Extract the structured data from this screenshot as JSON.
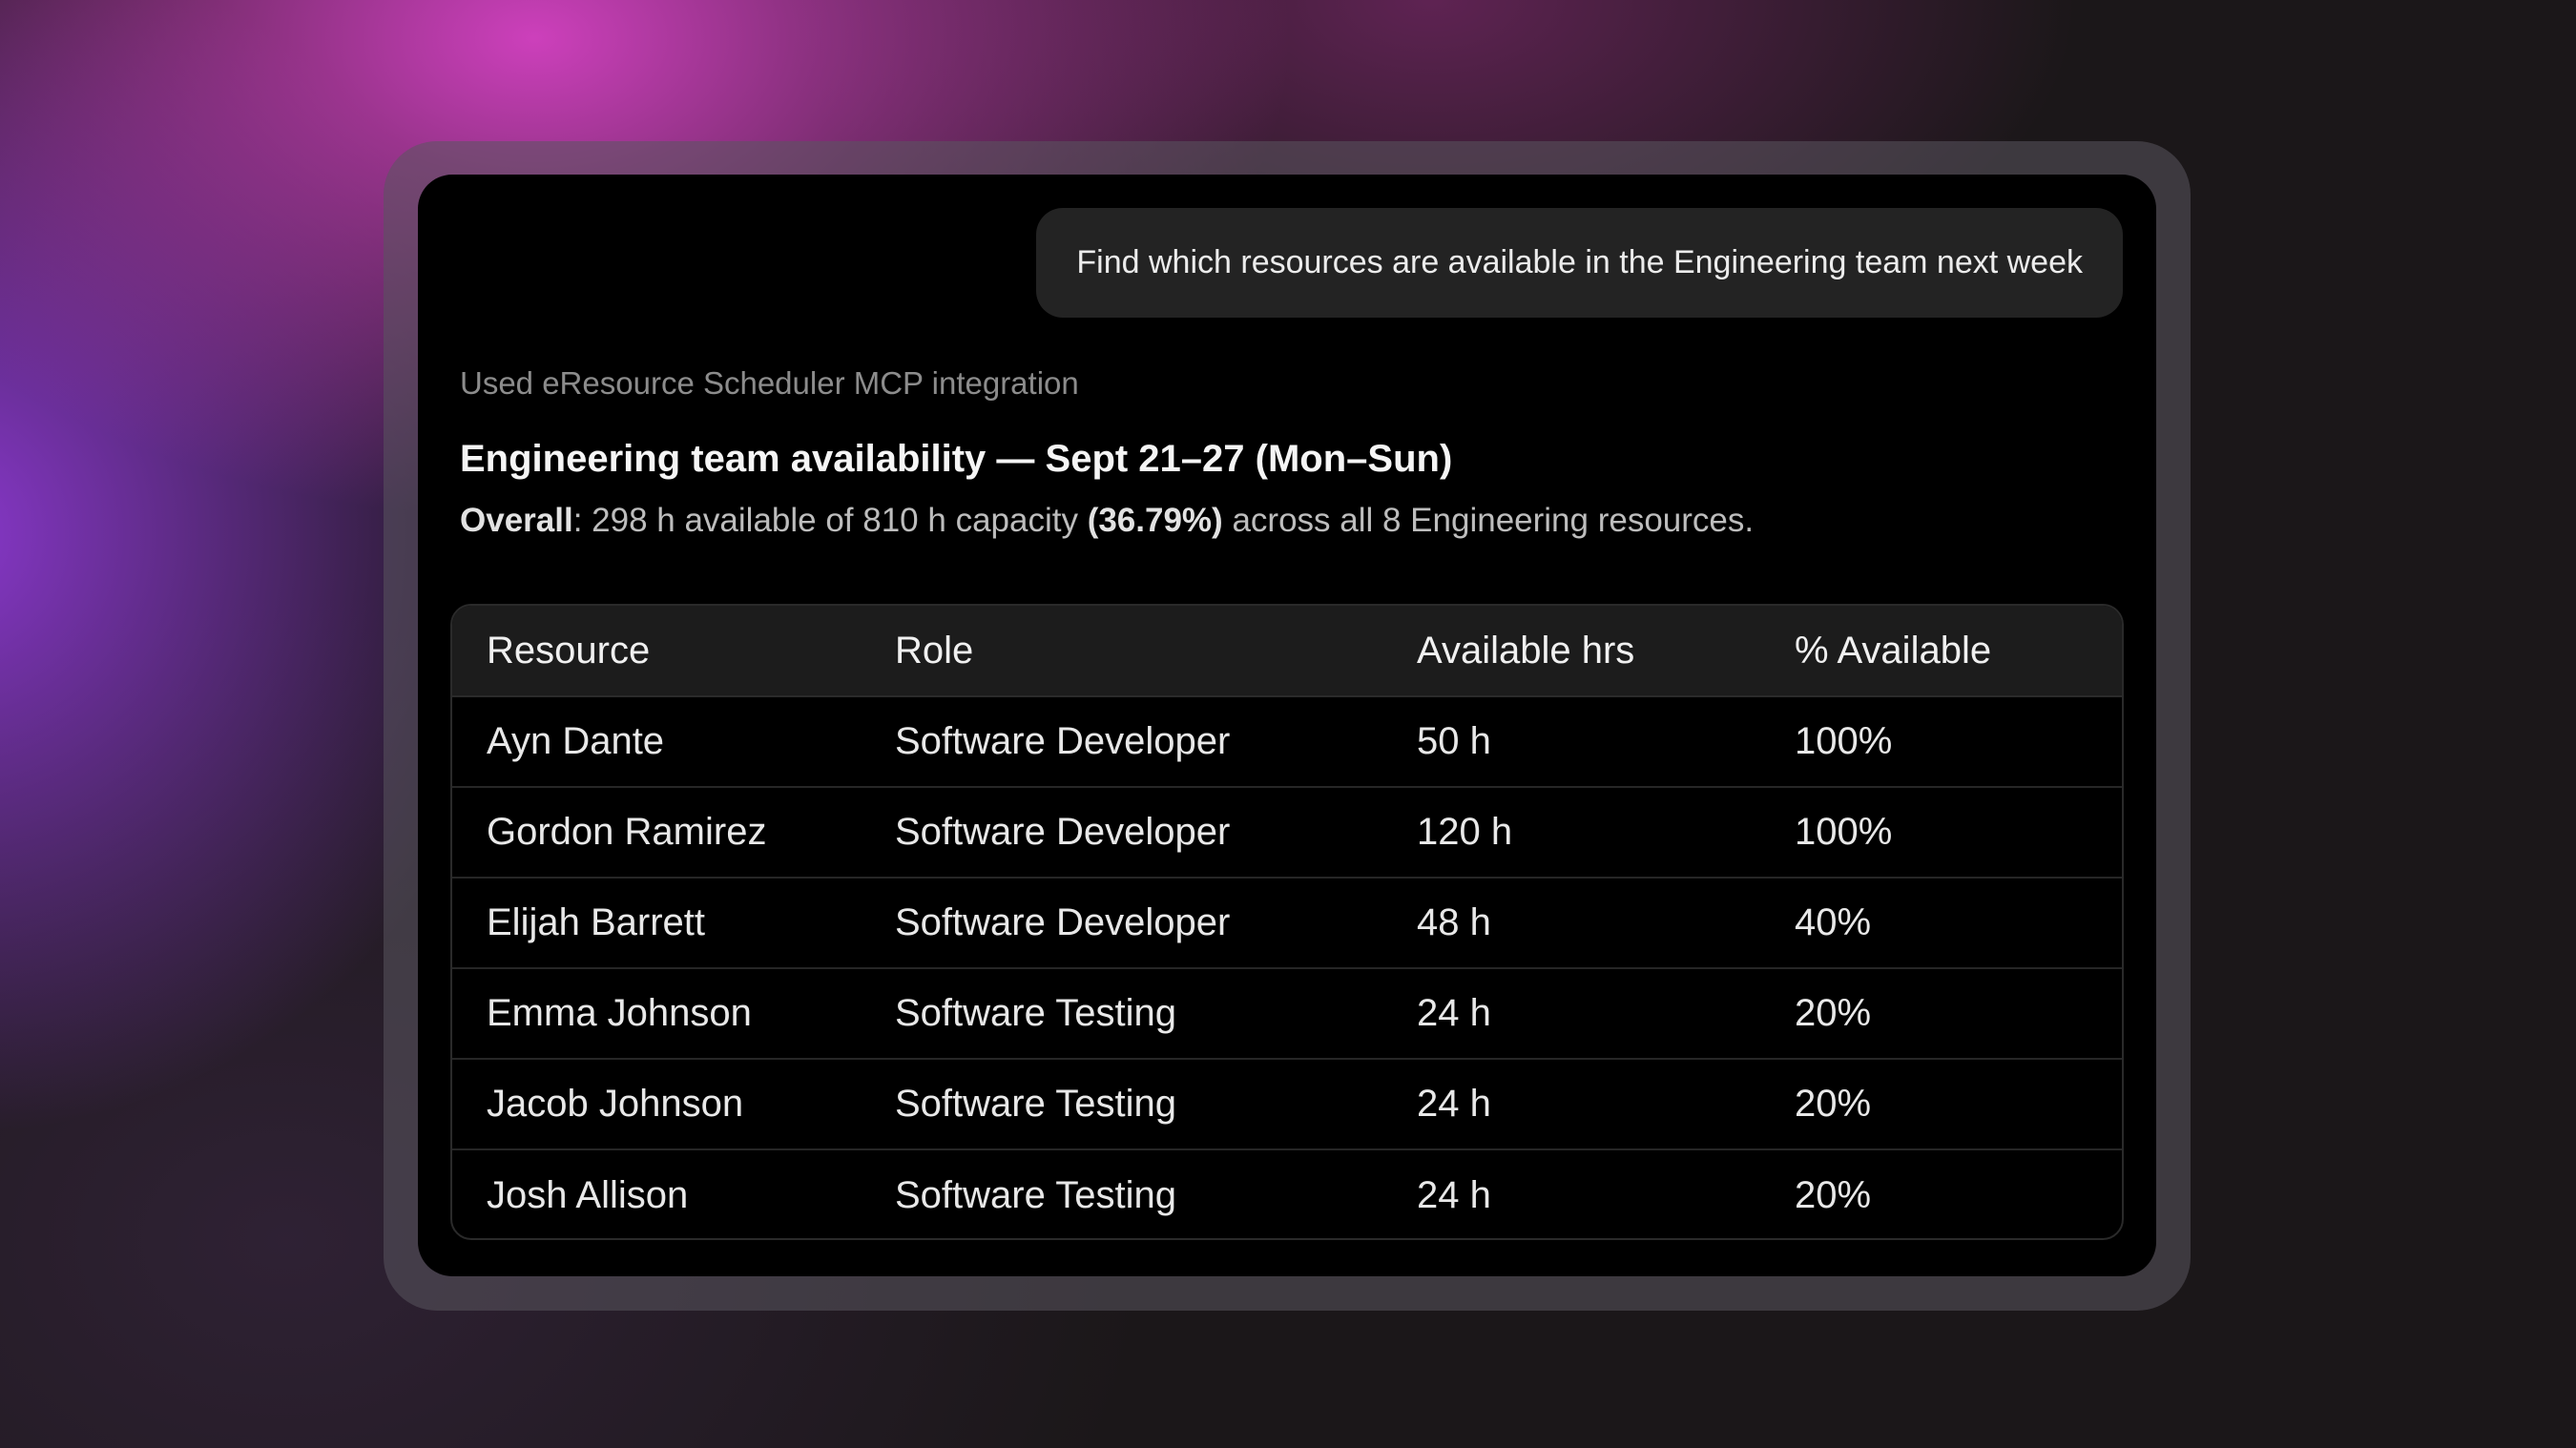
{
  "chat": {
    "user_message": "Find which resources are available in the Engineering team next week",
    "tool_note": "Used eResource Scheduler MCP integration",
    "heading": "Engineering team availability — Sept 21–27 (Mon–Sun)",
    "summary": {
      "label": "Overall",
      "text_1": ": 298 h available of 810 h capacity ",
      "percent": "(36.79%)",
      "text_2": " across all 8 Engineering resources."
    }
  },
  "table": {
    "headers": [
      "Resource",
      "Role",
      "Available hrs",
      "% Available"
    ],
    "rows": [
      [
        "Ayn Dante",
        "Software Developer",
        "50 h",
        "100%"
      ],
      [
        "Gordon Ramirez",
        "Software Developer",
        "120 h",
        "100%"
      ],
      [
        "Elijah Barrett",
        "Software Developer",
        "48 h",
        "40%"
      ],
      [
        "Emma Johnson",
        "Software Testing",
        "24 h",
        "20%"
      ],
      [
        "Jacob Johnson",
        "Software Testing",
        "24 h",
        "20%"
      ],
      [
        "Josh Allison",
        "Software Testing",
        "24 h",
        "20%"
      ]
    ]
  },
  "colors": {
    "panel_bg": "#000000",
    "bubble_bg": "#232323",
    "header_bg": "#1c1c1c"
  }
}
